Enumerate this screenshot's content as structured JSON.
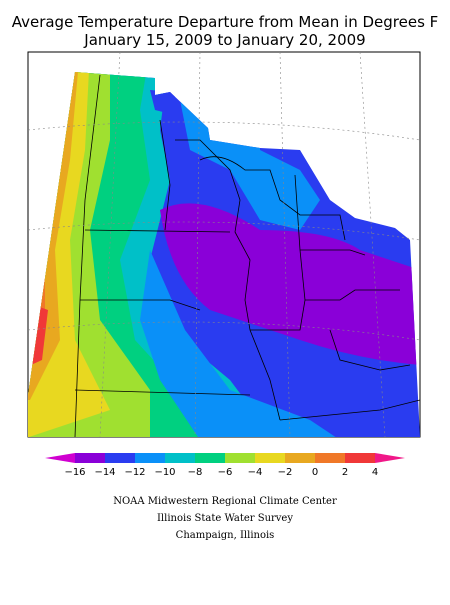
{
  "header": {
    "title": "Average Temperature Departure from Mean in Degrees F",
    "subtitle": "January 15, 2009 to January 20, 2009"
  },
  "legend": {
    "ticks": [
      "−16",
      "−14",
      "−12",
      "−10",
      "−8",
      "−6",
      "−4",
      "−2",
      "0",
      "2",
      "4"
    ],
    "colors": [
      "#d000d0",
      "#8a00d8",
      "#2a3cf0",
      "#0a90f8",
      "#00c0c8",
      "#00d080",
      "#a0e030",
      "#e8d820",
      "#e8a820",
      "#f07828",
      "#f03838",
      "#f01888"
    ]
  },
  "footer": {
    "lines": [
      "NOAA Midwestern Regional Climate Center",
      "Illinois State Water Survey",
      "Champaign, Illinois"
    ]
  }
}
